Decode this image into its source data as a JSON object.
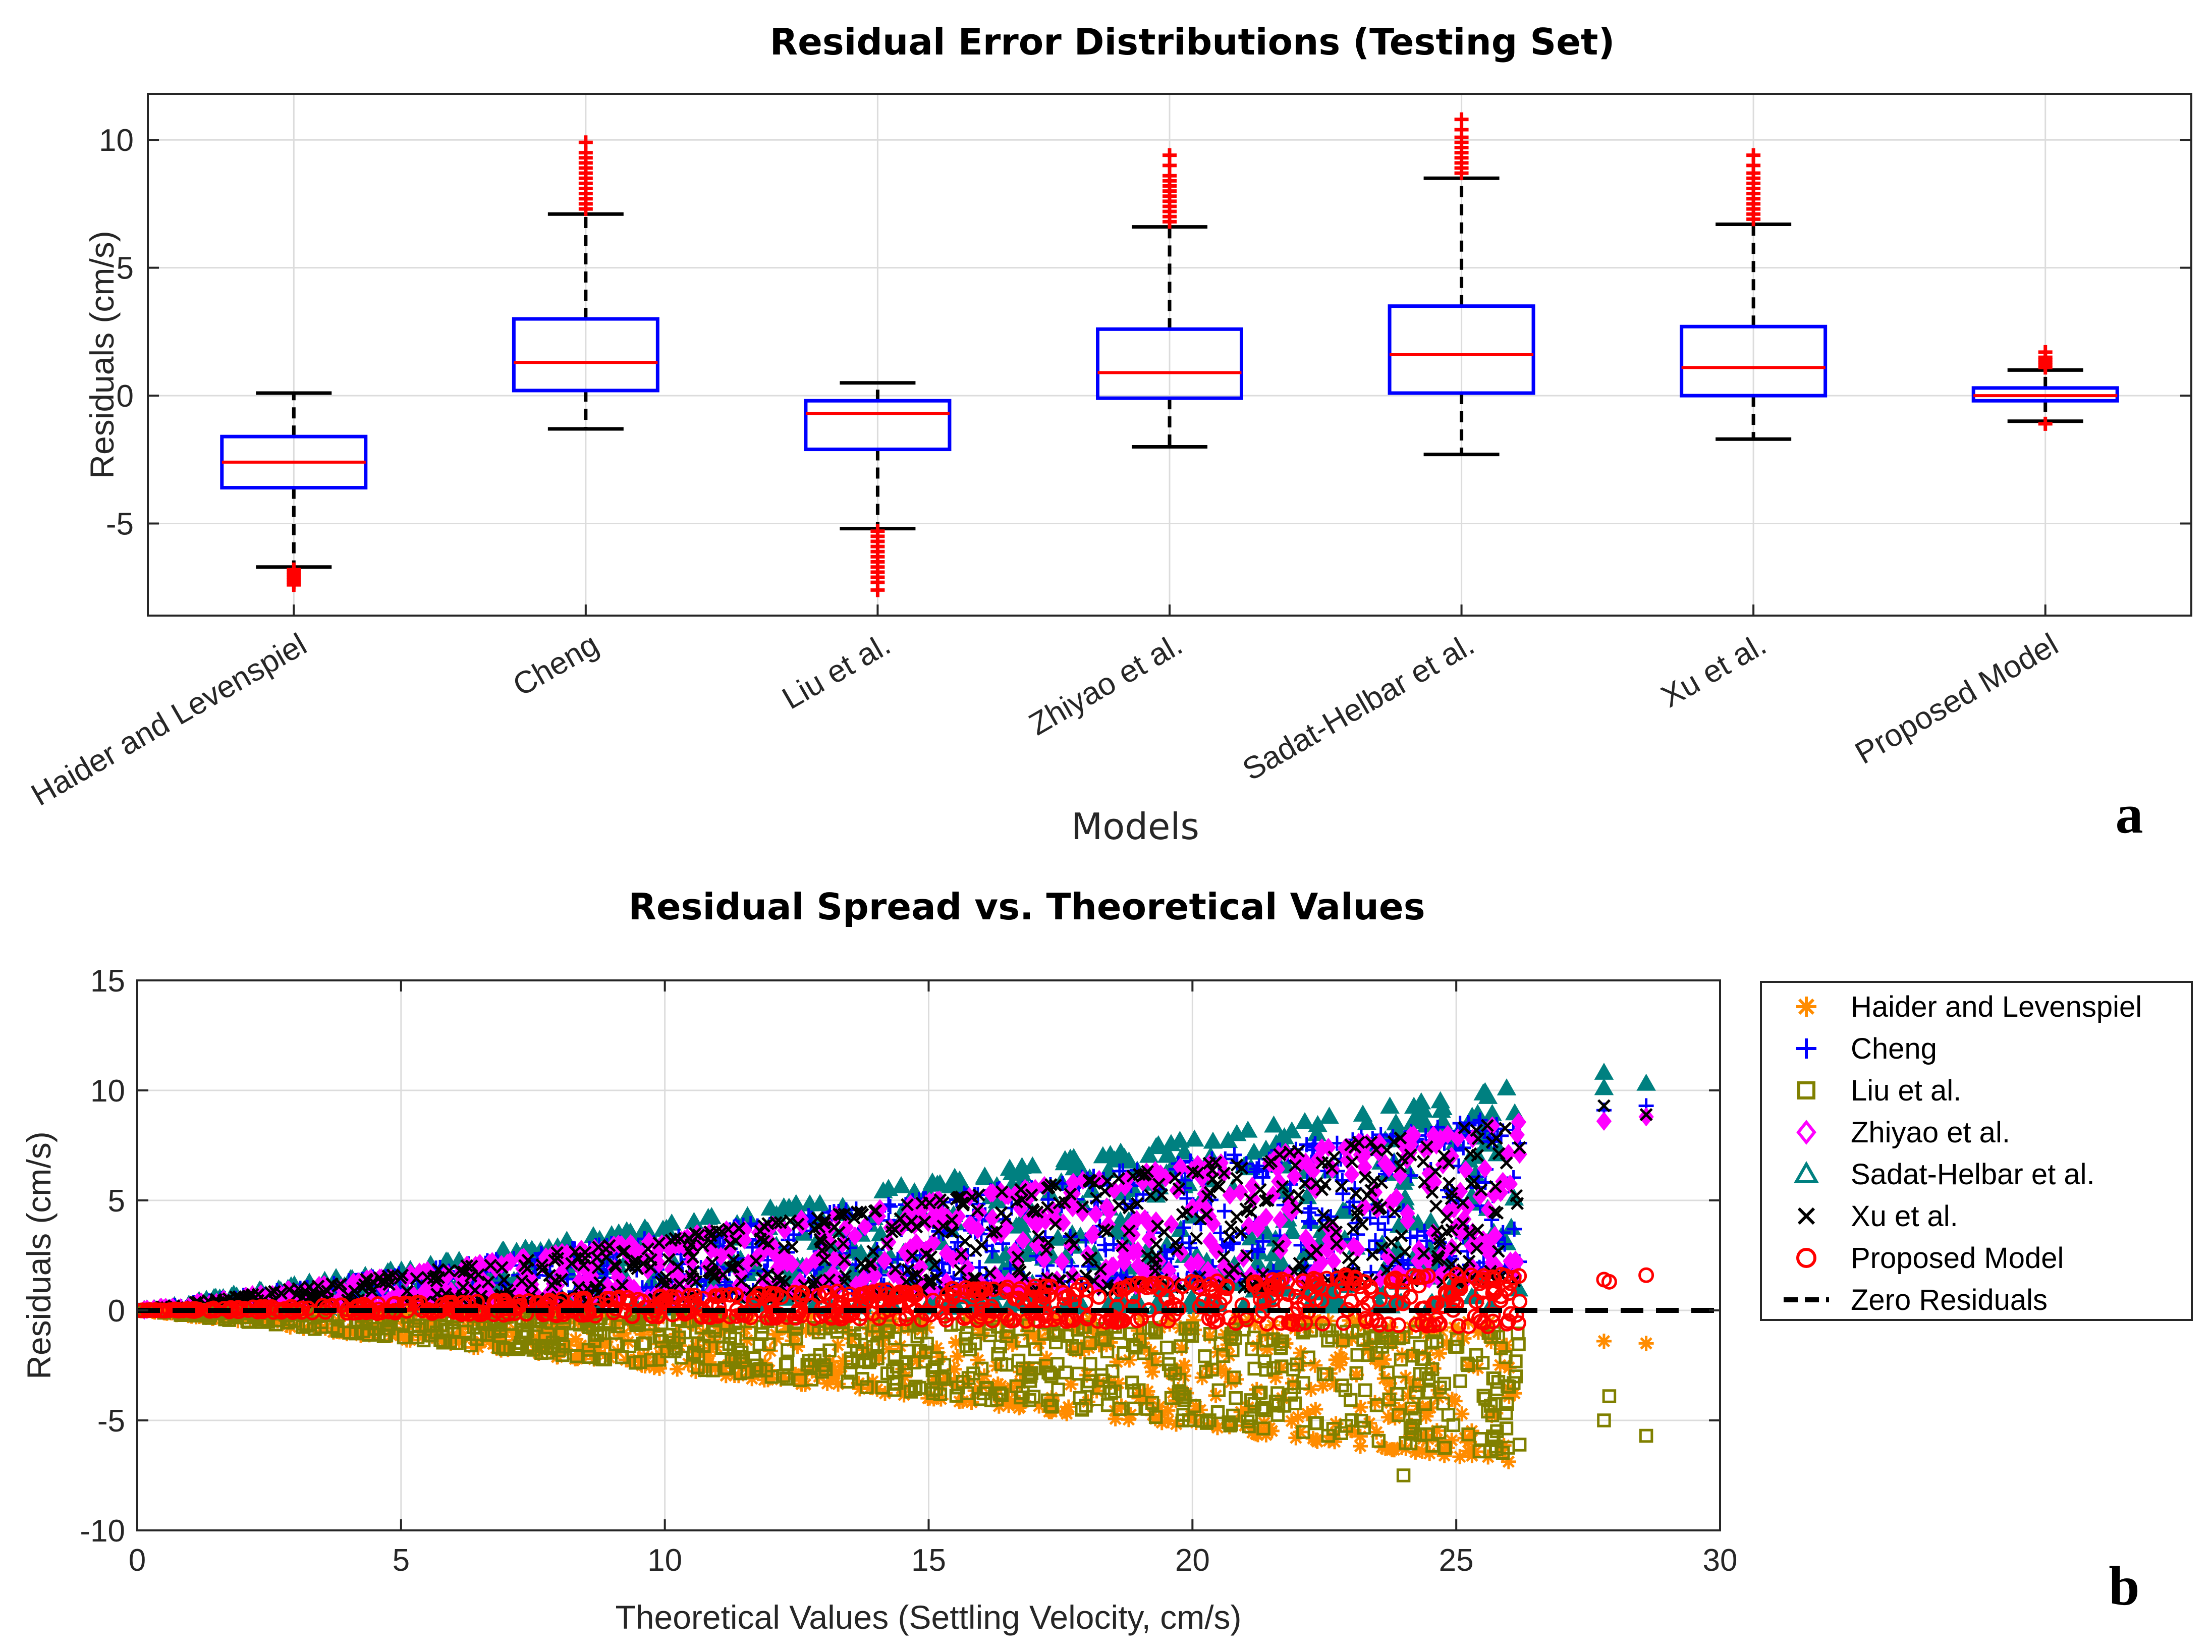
{
  "panel_a": {
    "letter": "a",
    "xlabel": "Models"
  },
  "panel_b": {
    "letter": "b"
  },
  "chart_data": [
    {
      "type": "box",
      "title": "Residual Error Distributions (Testing Set)",
      "xlabel": "Models",
      "ylabel": "Residuals (cm/s)",
      "ylim": [
        -8.6,
        11.8
      ],
      "yticks": [
        -5,
        0,
        5,
        10
      ],
      "grid": true,
      "categories": [
        "Haider and Levenspiel",
        "Cheng",
        "Liu et al.",
        "Zhiyao et al.",
        "Sadat-Helbar et al.",
        "Xu et al.",
        "Proposed Model"
      ],
      "boxes": [
        {
          "name": "Haider and Levenspiel",
          "whisker_low": -6.7,
          "q1": -3.6,
          "median": -2.6,
          "q3": -1.6,
          "whisker_high": 0.1,
          "outliers": [
            -6.8,
            -6.9,
            -7.0,
            -7.1,
            -7.2,
            -7.3,
            -7.4
          ]
        },
        {
          "name": "Cheng",
          "whisker_low": -1.3,
          "q1": 0.2,
          "median": 1.3,
          "q3": 3.0,
          "whisker_high": 7.1,
          "outliers": [
            7.3,
            7.5,
            7.7,
            7.9,
            8.1,
            8.3,
            8.5,
            8.7,
            8.9,
            9.1,
            9.3,
            9.5,
            9.9
          ]
        },
        {
          "name": "Liu et al.",
          "whisker_low": -5.2,
          "q1": -2.1,
          "median": -0.7,
          "q3": -0.2,
          "whisker_high": 0.5,
          "outliers": [
            -5.3,
            -5.5,
            -5.7,
            -5.9,
            -6.1,
            -6.3,
            -6.5,
            -6.7,
            -6.9,
            -7.1,
            -7.3,
            -7.6
          ]
        },
        {
          "name": "Zhiyao et al.",
          "whisker_low": -2.0,
          "q1": -0.1,
          "median": 0.9,
          "q3": 2.6,
          "whisker_high": 6.6,
          "outliers": [
            6.8,
            7.0,
            7.2,
            7.4,
            7.6,
            7.8,
            8.0,
            8.2,
            8.4,
            8.6,
            9.0,
            9.4
          ]
        },
        {
          "name": "Sadat-Helbar et al.",
          "whisker_low": -2.3,
          "q1": 0.1,
          "median": 1.6,
          "q3": 3.5,
          "whisker_high": 8.5,
          "outliers": [
            8.7,
            8.9,
            9.1,
            9.3,
            9.5,
            9.7,
            9.9,
            10.1,
            10.4,
            10.8
          ]
        },
        {
          "name": "Xu et al.",
          "whisker_low": -1.7,
          "q1": 0.0,
          "median": 1.1,
          "q3": 2.7,
          "whisker_high": 6.7,
          "outliers": [
            6.9,
            7.1,
            7.3,
            7.5,
            7.7,
            7.9,
            8.1,
            8.3,
            8.5,
            8.7,
            9.0,
            9.4
          ]
        },
        {
          "name": "Proposed Model",
          "whisker_low": -1.0,
          "q1": -0.2,
          "median": 0.0,
          "q3": 0.3,
          "whisker_high": 1.0,
          "outliers": [
            1.1,
            1.2,
            1.3,
            1.4,
            1.5,
            1.7,
            -1.1
          ]
        }
      ],
      "colors": {
        "box": "#0000ff",
        "median": "#ff0000",
        "whisker": "#000000",
        "outlier": "#ff0000"
      },
      "panel_label": "a"
    },
    {
      "type": "scatter",
      "title": "Residual Spread vs. Theoretical Values",
      "xlabel": "Theoretical Values (Settling Velocity, cm/s)",
      "ylabel": "Residuals (cm/s)",
      "xlim": [
        0,
        30
      ],
      "ylim": [
        -10,
        15
      ],
      "xticks": [
        0,
        5,
        10,
        15,
        20,
        25,
        30
      ],
      "yticks": [
        -10,
        -5,
        0,
        5,
        10,
        15
      ],
      "grid": true,
      "legend_position": "outside-right",
      "series": [
        {
          "name": "Haider and Levenspiel",
          "marker": "asterisk",
          "color": "#ff8c00",
          "slope_low": -0.31,
          "slope_high": -0.02,
          "points": [
            [
              27.8,
              -1.4
            ],
            [
              28.6,
              -1.5
            ],
            [
              26.0,
              -2.6
            ],
            [
              25.6,
              -0.7
            ],
            [
              24.0,
              -1.2
            ]
          ]
        },
        {
          "name": "Cheng",
          "marker": "plus",
          "color": "#0000ff",
          "slope_low": 0.02,
          "slope_high": 0.34,
          "points": [
            [
              27.8,
              9.1
            ],
            [
              28.6,
              9.3
            ],
            [
              23.5,
              4.8
            ],
            [
              26.2,
              7.6
            ]
          ]
        },
        {
          "name": "Liu et al.",
          "marker": "square",
          "color": "#808000",
          "slope_low": -0.29,
          "slope_high": -0.04,
          "points": [
            [
              27.8,
              -5.0
            ],
            [
              27.9,
              -3.9
            ],
            [
              28.6,
              -5.7
            ],
            [
              26.2,
              -6.1
            ],
            [
              24.0,
              -7.5
            ],
            [
              25.6,
              -4.6
            ]
          ]
        },
        {
          "name": "Zhiyao et al.",
          "marker": "diamond",
          "color": "#ff00ff",
          "slope_low": 0.01,
          "slope_high": 0.33,
          "points": [
            [
              27.8,
              8.6
            ],
            [
              28.6,
              8.8
            ],
            [
              23.5,
              4.6
            ],
            [
              26.2,
              7.1
            ]
          ]
        },
        {
          "name": "Sadat-Helbar et al.",
          "marker": "triangle",
          "color": "#008080",
          "slope_low": -0.06,
          "slope_high": 0.39,
          "points": [
            [
              27.8,
              10.8
            ],
            [
              28.6,
              10.3
            ],
            [
              27.8,
              10.1
            ],
            [
              25.6,
              9.7
            ],
            [
              24.0,
              5.8
            ]
          ]
        },
        {
          "name": "Xu et al.",
          "marker": "x",
          "color": "#000000",
          "slope_low": 0.0,
          "slope_high": 0.33,
          "points": [
            [
              27.8,
              9.3
            ],
            [
              28.6,
              8.9
            ],
            [
              23.5,
              4.8
            ],
            [
              26.2,
              7.4
            ]
          ]
        },
        {
          "name": "Proposed Model",
          "marker": "circle",
          "color": "#ff0000",
          "slope_low": -0.045,
          "slope_high": 0.065,
          "points": [
            [
              27.8,
              1.4
            ],
            [
              27.9,
              1.3
            ],
            [
              28.6,
              1.6
            ],
            [
              26.2,
              0.4
            ],
            [
              22.9,
              1.6
            ]
          ]
        },
        {
          "name": "Zero Residuals",
          "marker": "dashed-line",
          "color": "#000000",
          "x": [
            0,
            30
          ],
          "y": [
            0,
            0
          ]
        }
      ],
      "panel_label": "b"
    }
  ]
}
